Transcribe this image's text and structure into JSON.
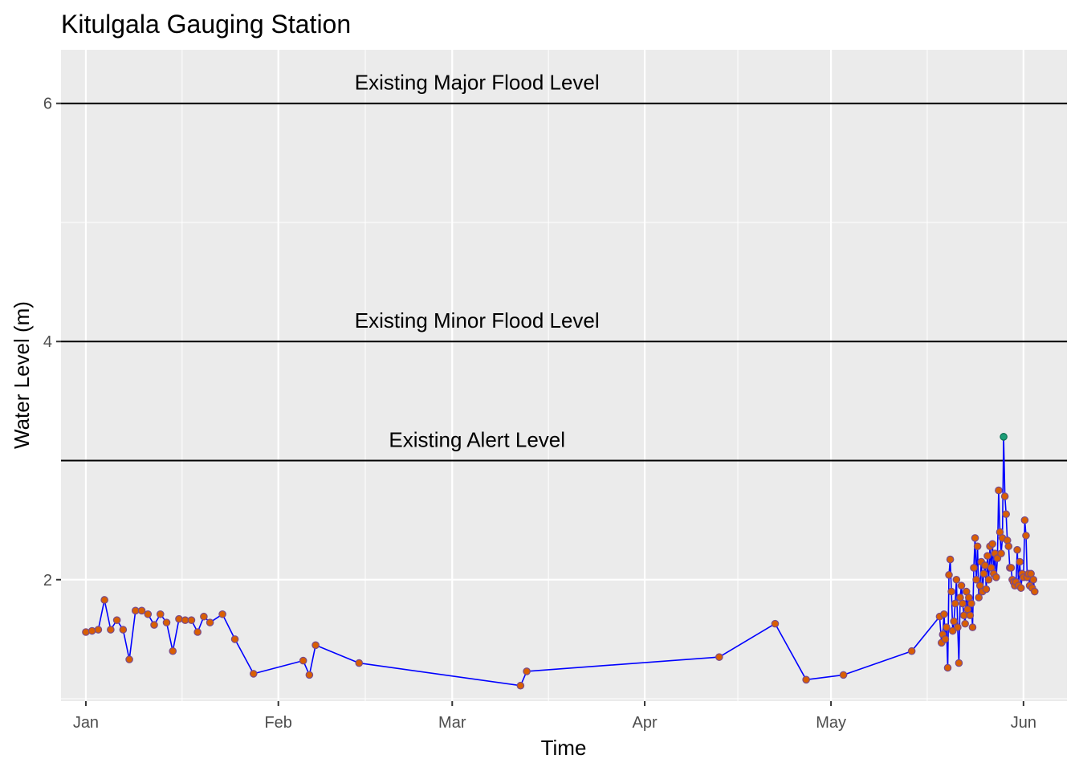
{
  "chart_data": {
    "type": "line",
    "title": "Kitulgala Gauging Station",
    "xlabel": "Time",
    "ylabel": "Water Level (m)",
    "x_axis": {
      "kind": "date",
      "range": [
        "2021-12-28",
        "2022-06-08"
      ],
      "ticks": [
        {
          "date": "2022-01-01",
          "label": "Jan"
        },
        {
          "date": "2022-02-01",
          "label": "Feb"
        },
        {
          "date": "2022-03-01",
          "label": "Mar"
        },
        {
          "date": "2022-04-01",
          "label": "Apr"
        },
        {
          "date": "2022-05-01",
          "label": "May"
        },
        {
          "date": "2022-06-01",
          "label": "Jun"
        }
      ]
    },
    "y_axis": {
      "range": [
        0.98,
        6.45
      ],
      "ticks": [
        2,
        4,
        6
      ],
      "minor_ticks": [
        1,
        3,
        5
      ]
    },
    "grid": true,
    "line_color": "#0000ff",
    "point_color": "#d95f02",
    "point_edge_color": "#7a4a8a",
    "highlight_color": "#1b9e77",
    "reference_lines": [
      {
        "label": "Existing Major Flood Level",
        "y": 6
      },
      {
        "label": "Existing Minor Flood Level",
        "y": 4
      },
      {
        "label": "Existing Alert Level",
        "y": 3
      }
    ],
    "series": [
      {
        "values": [
          [
            "2022-01-01",
            1.56
          ],
          [
            "2022-01-02",
            1.57
          ],
          [
            "2022-01-03",
            1.58
          ],
          [
            "2022-01-04",
            1.83
          ],
          [
            "2022-01-05",
            1.58
          ],
          [
            "2022-01-06",
            1.66
          ],
          [
            "2022-01-07",
            1.58
          ],
          [
            "2022-01-08",
            1.33
          ],
          [
            "2022-01-09",
            1.74
          ],
          [
            "2022-01-10",
            1.74
          ],
          [
            "2022-01-11",
            1.71
          ],
          [
            "2022-01-12",
            1.62
          ],
          [
            "2022-01-13",
            1.71
          ],
          [
            "2022-01-14",
            1.64
          ],
          [
            "2022-01-15",
            1.4
          ],
          [
            "2022-01-16",
            1.67
          ],
          [
            "2022-01-17",
            1.66
          ],
          [
            "2022-01-18",
            1.66
          ],
          [
            "2022-01-19",
            1.56
          ],
          [
            "2022-01-20",
            1.69
          ],
          [
            "2022-01-21",
            1.64
          ],
          [
            "2022-01-23",
            1.71
          ],
          [
            "2022-01-25",
            1.5
          ],
          [
            "2022-01-28",
            1.21
          ],
          [
            "2022-02-05",
            1.32
          ],
          [
            "2022-02-06",
            1.2
          ],
          [
            "2022-02-07",
            1.45
          ],
          [
            "2022-02-14",
            1.3
          ],
          [
            "2022-03-12",
            1.11
          ],
          [
            "2022-03-13",
            1.23
          ],
          [
            "2022-04-13",
            1.35
          ],
          [
            "2022-04-22",
            1.63
          ],
          [
            "2022-04-27",
            1.16
          ],
          [
            "2022-05-03",
            1.2
          ],
          [
            "2022-05-14",
            1.4
          ],
          [
            "2022-05-18.5",
            1.69
          ],
          [
            "2022-05-18.8",
            1.47
          ],
          [
            "2022-05-19.0",
            1.54
          ],
          [
            "2022-05-19.2",
            1.71
          ],
          [
            "2022-05-19.4",
            1.5
          ],
          [
            "2022-05-19.6",
            1.6
          ],
          [
            "2022-05-19.8",
            1.26
          ],
          [
            "2022-05-20.0",
            2.04
          ],
          [
            "2022-05-20.2",
            2.17
          ],
          [
            "2022-05-20.4",
            1.9
          ],
          [
            "2022-05-20.6",
            1.57
          ],
          [
            "2022-05-20.8",
            1.65
          ],
          [
            "2022-05-21.0",
            1.8
          ],
          [
            "2022-05-21.2",
            2.0
          ],
          [
            "2022-05-21.4",
            1.6
          ],
          [
            "2022-05-21.6",
            1.3
          ],
          [
            "2022-05-21.8",
            1.85
          ],
          [
            "2022-05-22.0",
            1.95
          ],
          [
            "2022-05-22.2",
            1.8
          ],
          [
            "2022-05-22.4",
            1.7
          ],
          [
            "2022-05-22.6",
            1.63
          ],
          [
            "2022-05-22.8",
            1.9
          ],
          [
            "2022-05-23.0",
            1.75
          ],
          [
            "2022-05-23.2",
            1.85
          ],
          [
            "2022-05-23.4",
            1.7
          ],
          [
            "2022-05-23.6",
            1.8
          ],
          [
            "2022-05-23.8",
            1.6
          ],
          [
            "2022-05-24.0",
            2.1
          ],
          [
            "2022-05-24.2",
            2.35
          ],
          [
            "2022-05-24.4",
            2.0
          ],
          [
            "2022-05-24.6",
            2.28
          ],
          [
            "2022-05-24.8",
            1.85
          ],
          [
            "2022-05-25.0",
            1.95
          ],
          [
            "2022-05-25.2",
            2.15
          ],
          [
            "2022-05-25.4",
            1.9
          ],
          [
            "2022-05-25.6",
            2.05
          ],
          [
            "2022-05-25.8",
            2.12
          ],
          [
            "2022-05-26.0",
            1.92
          ],
          [
            "2022-05-26.2",
            2.2
          ],
          [
            "2022-05-26.4",
            2.0
          ],
          [
            "2022-05-26.6",
            2.28
          ],
          [
            "2022-05-26.8",
            2.1
          ],
          [
            "2022-05-27.0",
            2.3
          ],
          [
            "2022-05-27.2",
            2.05
          ],
          [
            "2022-05-27.4",
            2.22
          ],
          [
            "2022-05-27.6",
            2.02
          ],
          [
            "2022-05-27.8",
            2.18
          ],
          [
            "2022-05-28.0",
            2.75
          ],
          [
            "2022-05-28.2",
            2.4
          ],
          [
            "2022-05-28.4",
            2.22
          ],
          [
            "2022-05-28.6",
            2.35
          ],
          [
            "2022-05-28.8",
            3.2
          ],
          [
            "2022-05-29.0",
            2.7
          ],
          [
            "2022-05-29.2",
            2.55
          ],
          [
            "2022-05-29.4",
            2.33
          ],
          [
            "2022-05-29.6",
            2.28
          ],
          [
            "2022-05-29.8",
            2.1
          ],
          [
            "2022-05-30.0",
            2.1
          ],
          [
            "2022-05-30.2",
            2.0
          ],
          [
            "2022-05-30.4",
            1.98
          ],
          [
            "2022-05-30.6",
            1.95
          ],
          [
            "2022-05-30.8",
            1.98
          ],
          [
            "2022-05-31.0",
            2.25
          ],
          [
            "2022-05-31.2",
            1.95
          ],
          [
            "2022-05-31.4",
            2.15
          ],
          [
            "2022-05-31.6",
            1.93
          ],
          [
            "2022-05-31.8",
            2.05
          ],
          [
            "2022-06-01.0",
            2.02
          ],
          [
            "2022-06-01.2",
            2.5
          ],
          [
            "2022-06-01.4",
            2.37
          ],
          [
            "2022-06-01.6",
            2.02
          ],
          [
            "2022-06-01.8",
            2.05
          ],
          [
            "2022-06-02.0",
            1.95
          ],
          [
            "2022-06-02.2",
            2.05
          ],
          [
            "2022-06-02.4",
            1.93
          ],
          [
            "2022-06-02.6",
            2.0
          ],
          [
            "2022-06-02.8",
            1.9
          ]
        ],
        "highlight": [
          [
            "2022-05-28.8",
            3.2
          ]
        ]
      }
    ]
  }
}
